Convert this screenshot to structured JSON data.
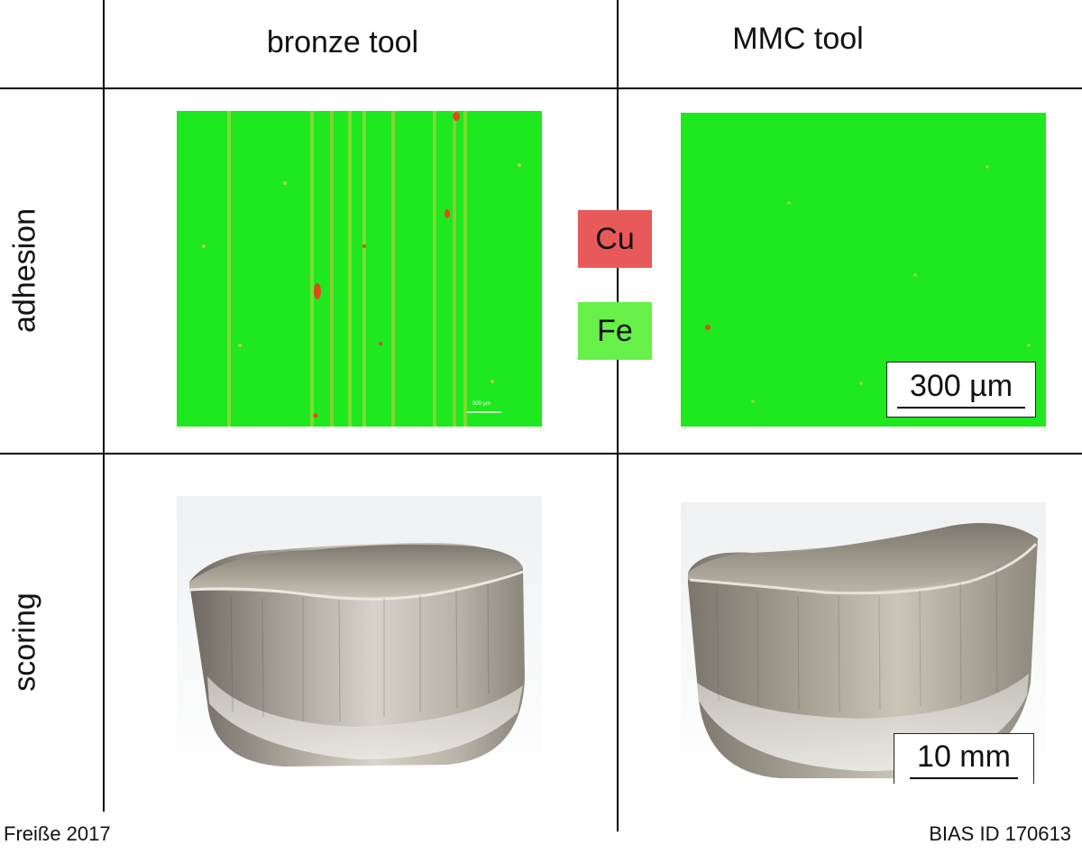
{
  "columns": {
    "left": "bronze tool",
    "right": "MMC tool"
  },
  "rows": {
    "top": "adhesion",
    "bottom": "scoring"
  },
  "legend": {
    "items": [
      {
        "label": "Cu",
        "color": "#e85a5a"
      },
      {
        "label": "Fe",
        "color": "#66f048"
      }
    ]
  },
  "panels": {
    "bronze_adhesion_scalebar": "300 µm",
    "mmc_adhesion_scalebar": "300 µm",
    "mmc_scoring_scalebar": "10 mm"
  },
  "footer": {
    "left": "Freiße 2017",
    "right": "BIAS ID 170613"
  },
  "colors": {
    "fe_map": "#1ee81e",
    "cu_spot": "#e04a1a",
    "steel": "#a8a396"
  }
}
